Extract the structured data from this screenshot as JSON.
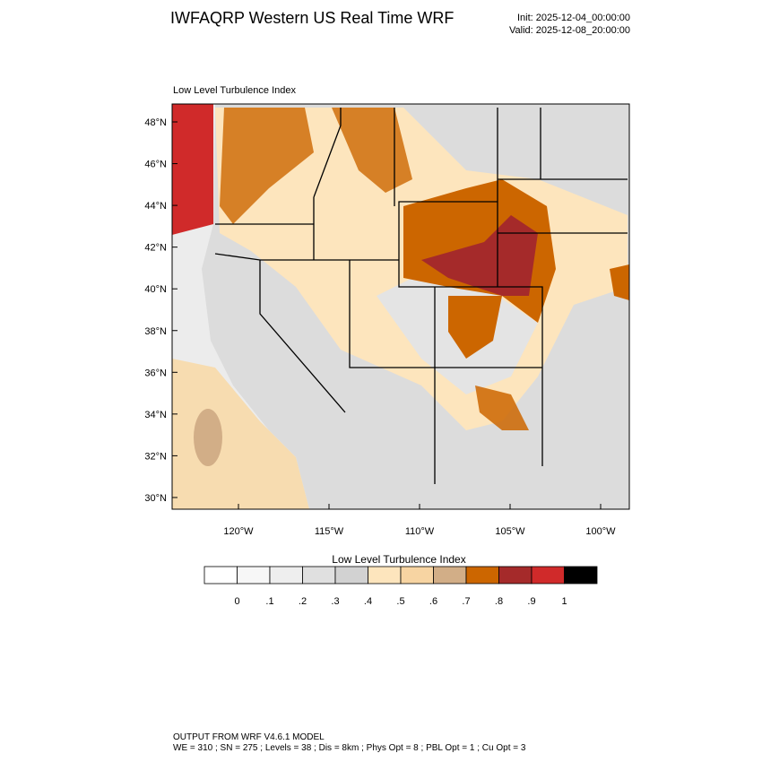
{
  "header": {
    "title": "IWFAQRP Western US Real Time WRF",
    "init": "Init: 2025-12-04_00:00:00",
    "valid": "Valid: 2025-12-08_20:00:00"
  },
  "map": {
    "title": "Low Level Turbulence Index",
    "lat_labels": [
      "48°N",
      "46°N",
      "44°N",
      "42°N",
      "40°N",
      "38°N",
      "36°N",
      "34°N",
      "32°N",
      "30°N"
    ],
    "lon_labels": [
      "120°W",
      "115°W",
      "110°W",
      "105°W",
      "100°W"
    ]
  },
  "colorbar": {
    "title": "Low Level Turbulence Index",
    "colors": [
      "#ffffff",
      "#f7f7f7",
      "#eeeeee",
      "#e0e0e0",
      "#d2d2d2",
      "#fde5bd",
      "#f7d4a2",
      "#d2ae87",
      "#cc6600",
      "#a52a2a",
      "#d02a2a",
      "#000000"
    ],
    "labels": [
      "0",
      ".1",
      ".2",
      ".3",
      ".4",
      ".5",
      ".6",
      ".7",
      ".8",
      ".9",
      "1"
    ]
  },
  "footer": {
    "line1": "OUTPUT FROM WRF V4.6.1 MODEL",
    "line2": "WE = 310 ; SN = 275 ; Levels = 38 ; Dis = 8km ; Phys Opt = 8 ; PBL Opt = 1 ; Cu Opt = 3"
  }
}
